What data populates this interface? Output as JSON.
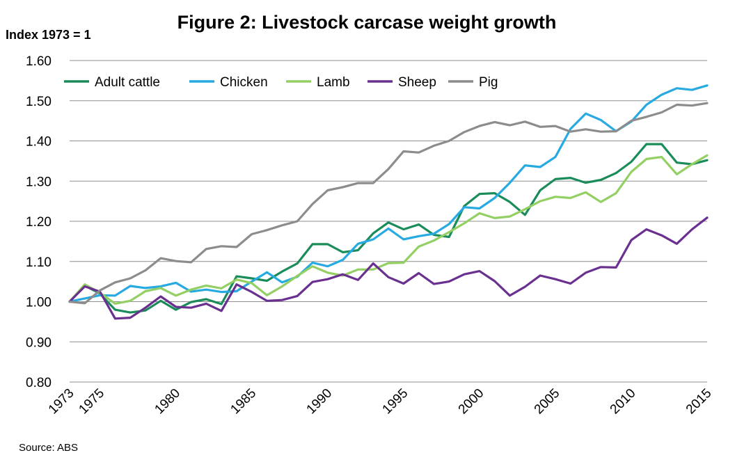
{
  "chart_data": {
    "type": "line",
    "title": "Figure 2: Livestock carcase weight growth",
    "ylabel": "Index 1973 = 1",
    "source": "Source: ABS",
    "ylim": [
      0.8,
      1.6
    ],
    "yticks": [
      "0.80",
      "0.90",
      "1.00",
      "1.10",
      "1.20",
      "1.30",
      "1.40",
      "1.50",
      "1.60"
    ],
    "xlim": [
      1973,
      2015
    ],
    "xticks": [
      "1973",
      "1975",
      "1980",
      "1985",
      "1990",
      "1995",
      "2000",
      "2005",
      "2010",
      "2015"
    ],
    "grid": true,
    "legend_position": "top",
    "x": [
      1973,
      1974,
      1975,
      1976,
      1977,
      1978,
      1979,
      1980,
      1981,
      1982,
      1983,
      1984,
      1985,
      1986,
      1987,
      1988,
      1989,
      1990,
      1991,
      1992,
      1993,
      1994,
      1995,
      1996,
      1997,
      1998,
      1999,
      2000,
      2001,
      2002,
      2003,
      2004,
      2005,
      2006,
      2007,
      2008,
      2009,
      2010,
      2011,
      2012,
      2013,
      2014,
      2015
    ],
    "series": [
      {
        "name": "Adult cattle",
        "color": "#1a8c5a",
        "values": [
          1.0,
          1.04,
          1.02,
          0.98,
          0.973,
          0.978,
          1.002,
          0.98,
          0.999,
          1.006,
          0.994,
          1.063,
          1.058,
          1.052,
          1.075,
          1.095,
          1.143,
          1.143,
          1.123,
          1.128,
          1.17,
          1.197,
          1.18,
          1.192,
          1.166,
          1.161,
          1.238,
          1.268,
          1.27,
          1.248,
          1.216,
          1.277,
          1.305,
          1.308,
          1.296,
          1.303,
          1.32,
          1.348,
          1.392,
          1.392,
          1.346,
          1.342,
          1.352
        ]
      },
      {
        "name": "Chicken",
        "color": "#27aae1",
        "values": [
          1.0,
          1.008,
          1.016,
          1.015,
          1.039,
          1.034,
          1.038,
          1.047,
          1.025,
          1.03,
          1.024,
          1.026,
          1.05,
          1.073,
          1.048,
          1.062,
          1.097,
          1.088,
          1.104,
          1.144,
          1.155,
          1.182,
          1.155,
          1.163,
          1.169,
          1.193,
          1.235,
          1.232,
          1.258,
          1.296,
          1.339,
          1.335,
          1.36,
          1.43,
          1.468,
          1.452,
          1.424,
          1.448,
          1.49,
          1.515,
          1.531,
          1.527,
          1.538
        ]
      },
      {
        "name": "Lamb",
        "color": "#93cf62",
        "values": [
          1.0,
          1.043,
          1.022,
          0.995,
          1.002,
          1.026,
          1.034,
          1.015,
          1.03,
          1.04,
          1.033,
          1.055,
          1.046,
          1.016,
          1.038,
          1.064,
          1.088,
          1.072,
          1.065,
          1.08,
          1.08,
          1.096,
          1.097,
          1.137,
          1.152,
          1.173,
          1.195,
          1.22,
          1.208,
          1.212,
          1.23,
          1.25,
          1.261,
          1.258,
          1.272,
          1.248,
          1.27,
          1.323,
          1.355,
          1.36,
          1.317,
          1.342,
          1.364
        ]
      },
      {
        "name": "Sheep",
        "color": "#6a3090",
        "values": [
          1.0,
          1.038,
          1.025,
          0.958,
          0.96,
          0.985,
          1.013,
          0.987,
          0.985,
          0.995,
          0.977,
          1.043,
          1.024,
          1.002,
          1.004,
          1.014,
          1.049,
          1.056,
          1.068,
          1.054,
          1.095,
          1.061,
          1.045,
          1.071,
          1.044,
          1.05,
          1.068,
          1.076,
          1.051,
          1.015,
          1.037,
          1.065,
          1.056,
          1.045,
          1.072,
          1.086,
          1.085,
          1.153,
          1.18,
          1.165,
          1.144,
          1.18,
          1.209
        ]
      },
      {
        "name": "Pig",
        "color": "#8c8c8c",
        "values": [
          1.0,
          0.996,
          1.028,
          1.048,
          1.058,
          1.078,
          1.108,
          1.101,
          1.098,
          1.131,
          1.138,
          1.136,
          1.168,
          1.178,
          1.19,
          1.2,
          1.243,
          1.277,
          1.285,
          1.295,
          1.295,
          1.33,
          1.374,
          1.371,
          1.388,
          1.4,
          1.422,
          1.437,
          1.447,
          1.439,
          1.448,
          1.435,
          1.437,
          1.423,
          1.429,
          1.423,
          1.424,
          1.45,
          1.46,
          1.471,
          1.49,
          1.488,
          1.494
        ]
      }
    ]
  }
}
